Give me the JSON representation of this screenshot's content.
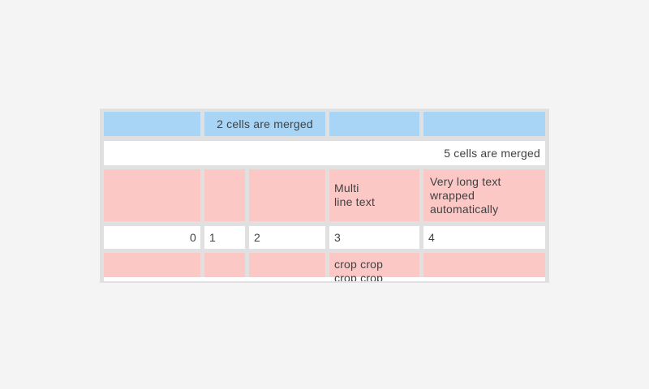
{
  "page": {
    "background": "#f4f4f5"
  },
  "table": {
    "background": "#e0e0e0",
    "text_color": "#414141",
    "colors": {
      "blue_cell": "#a8d5f6",
      "pink_cell": "#fbc8c6",
      "white_cell": "#ffffff"
    },
    "rows": {
      "header": {
        "merged_label": "2 cells are merged"
      },
      "full_merge": {
        "label": "5 cells are merged"
      },
      "multiline": {
        "col4": "Multi\nline text",
        "col5": "Very long text wrapped automatically"
      },
      "numbers": [
        "0",
        "1",
        "2",
        "3",
        "4"
      ],
      "crop": {
        "col4": "crop crop\ncrop crop"
      }
    }
  }
}
